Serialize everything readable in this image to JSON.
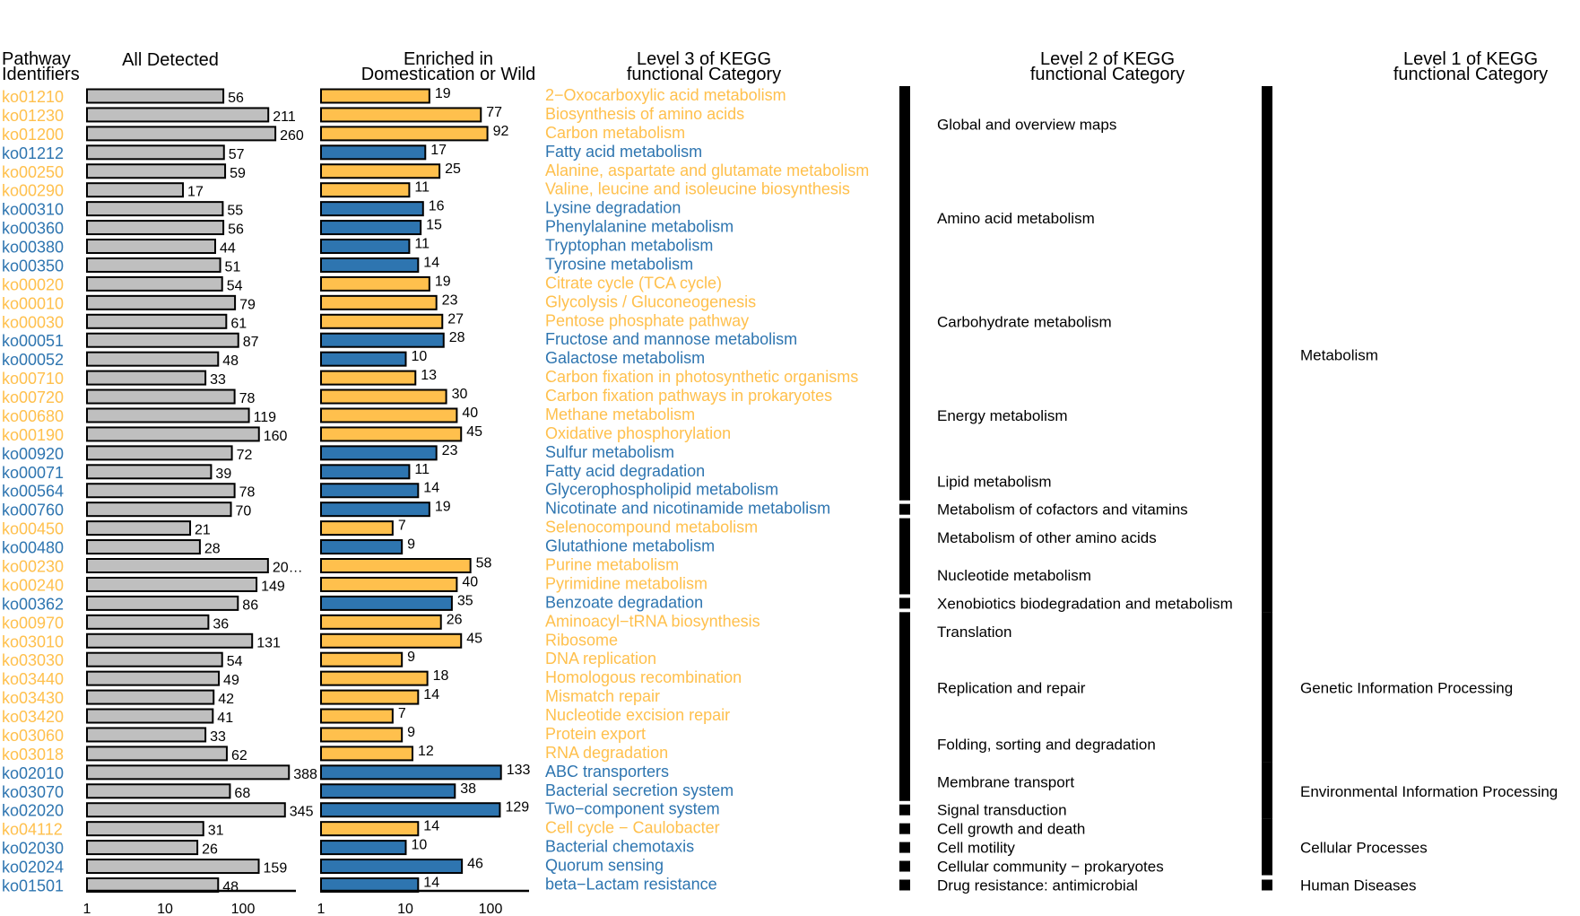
{
  "colors": {
    "domestication": "#FFC04D",
    "wild": "#2E75B0",
    "all_detected": "#BFBFBF",
    "outline": "#000000"
  },
  "headers": {
    "pathway_identifiers_line1": "Pathway",
    "pathway_identifiers_line2": "Identifiers",
    "all_detected": "All Detected",
    "enriched_line1": "Enriched in",
    "enriched_line2": "Domestication or Wild",
    "level3_line1": "Level 3 of KEGG",
    "level3_line2": "functional Category",
    "level2_line1": "Level 2 of KEGG",
    "level2_line2": "functional Category",
    "level1_line1": "Level 1 of KEGG",
    "level1_line2": "functional Category"
  },
  "chart_data": {
    "type": "bar",
    "orientation": "horizontal",
    "xscale": "log10",
    "xlim": [
      1,
      300
    ],
    "xticks": [
      "1",
      "10",
      "100"
    ],
    "categories": [
      "ko01210",
      "ko01230",
      "ko01200",
      "ko01212",
      "ko00250",
      "ko00290",
      "ko00310",
      "ko00360",
      "ko00380",
      "ko00350",
      "ko00020",
      "ko00010",
      "ko00030",
      "ko00051",
      "ko00052",
      "ko00710",
      "ko00720",
      "ko00680",
      "ko00190",
      "ko00920",
      "ko00071",
      "ko00564",
      "ko00760",
      "ko00450",
      "ko00480",
      "ko00230",
      "ko00240",
      "ko00362",
      "ko00970",
      "ko03010",
      "ko03030",
      "ko03440",
      "ko03430",
      "ko03420",
      "ko03060",
      "ko03018",
      "ko02010",
      "ko03070",
      "ko02020",
      "ko04112",
      "ko02030",
      "ko02024",
      "ko01501"
    ],
    "pathway_names": [
      "2−Oxocarboxylic acid metabolism",
      "Biosynthesis of amino acids",
      "Carbon metabolism",
      "Fatty acid metabolism",
      "Alanine, aspartate and glutamate metabolism",
      "Valine, leucine and isoleucine biosynthesis",
      "Lysine degradation",
      "Phenylalanine metabolism",
      "Tryptophan metabolism",
      "Tyrosine metabolism",
      "Citrate cycle (TCA cycle)",
      "Glycolysis / Gluconeogenesis",
      "Pentose phosphate pathway",
      "Fructose and mannose metabolism",
      "Galactose metabolism",
      "Carbon fixation in photosynthetic organisms",
      "Carbon fixation pathways in prokaryotes",
      "Methane metabolism",
      "Oxidative phosphorylation",
      "Sulfur metabolism",
      "Fatty acid degradation",
      "Glycerophospholipid metabolism",
      "Nicotinate and nicotinamide metabolism",
      "Selenocompound metabolism",
      "Glutathione metabolism",
      "Purine metabolism",
      "Pyrimidine metabolism",
      "Benzoate degradation",
      "Aminoacyl−tRNA biosynthesis",
      "Ribosome",
      "DNA replication",
      "Homologous recombination",
      "Mismatch repair",
      "Nucleotide excision repair",
      "Protein export",
      "RNA degradation",
      "ABC transporters",
      "Bacterial secretion system",
      "Two−component system",
      "Cell cycle − Caulobacter",
      "Bacterial chemotaxis",
      "Quorum sensing",
      "beta−Lactam resistance"
    ],
    "enriched_in": [
      "D",
      "D",
      "D",
      "W",
      "D",
      "D",
      "W",
      "W",
      "W",
      "W",
      "D",
      "D",
      "D",
      "W",
      "W",
      "D",
      "D",
      "D",
      "D",
      "W",
      "W",
      "W",
      "W",
      "D",
      "W",
      "D",
      "D",
      "W",
      "D",
      "D",
      "D",
      "D",
      "D",
      "D",
      "D",
      "D",
      "W",
      "W",
      "W",
      "D",
      "W",
      "W",
      "W"
    ],
    "series": [
      {
        "name": "All Detected",
        "values": [
          56,
          211,
          260,
          57,
          59,
          17,
          55,
          56,
          44,
          51,
          54,
          79,
          61,
          87,
          48,
          33,
          78,
          119,
          160,
          72,
          39,
          78,
          70,
          21,
          28,
          209,
          149,
          86,
          36,
          131,
          54,
          49,
          42,
          41,
          33,
          62,
          388,
          68,
          345,
          31,
          26,
          159,
          48
        ],
        "labels": [
          "56",
          "211",
          "260",
          "57",
          "59",
          "17",
          "55",
          "56",
          "44",
          "51",
          "54",
          "79",
          "61",
          "87",
          "48",
          "33",
          "78",
          "119",
          "160",
          "72",
          "39",
          "78",
          "70",
          "21",
          "28",
          "20…",
          "149",
          "86",
          "36",
          "131",
          "54",
          "49",
          "42",
          "41",
          "33",
          "62",
          "388",
          "68",
          "345",
          "31",
          "26",
          "159",
          "48"
        ]
      },
      {
        "name": "Enriched in Domestication or Wild",
        "values": [
          19,
          77,
          92,
          17,
          25,
          11,
          16,
          15,
          11,
          14,
          19,
          23,
          27,
          28,
          10,
          13,
          30,
          40,
          45,
          23,
          11,
          14,
          19,
          7,
          9,
          58,
          40,
          35,
          26,
          45,
          9,
          18,
          14,
          7,
          9,
          12,
          133,
          38,
          129,
          14,
          10,
          46,
          14
        ]
      }
    ]
  },
  "level2": [
    "Global and overview maps",
    "Amino acid metabolism",
    "Carbohydrate metabolism",
    "Energy metabolism",
    "Lipid metabolism",
    "Metabolism of cofactors and vitamins",
    "Metabolism of other amino acids",
    "Nucleotide metabolism",
    "Xenobiotics biodegradation and metabolism",
    "Translation",
    "Replication and repair",
    "Folding, sorting and degradation",
    "Membrane transport",
    "Signal transduction",
    "Cell growth and death",
    "Cell motility",
    "Cellular community − prokaryotes",
    "Drug resistance: antimicrobial"
  ],
  "level1": [
    "Metabolism",
    "Genetic Information Processing",
    "Environmental Information Processing",
    "Cellular Processes",
    "Human Diseases"
  ]
}
